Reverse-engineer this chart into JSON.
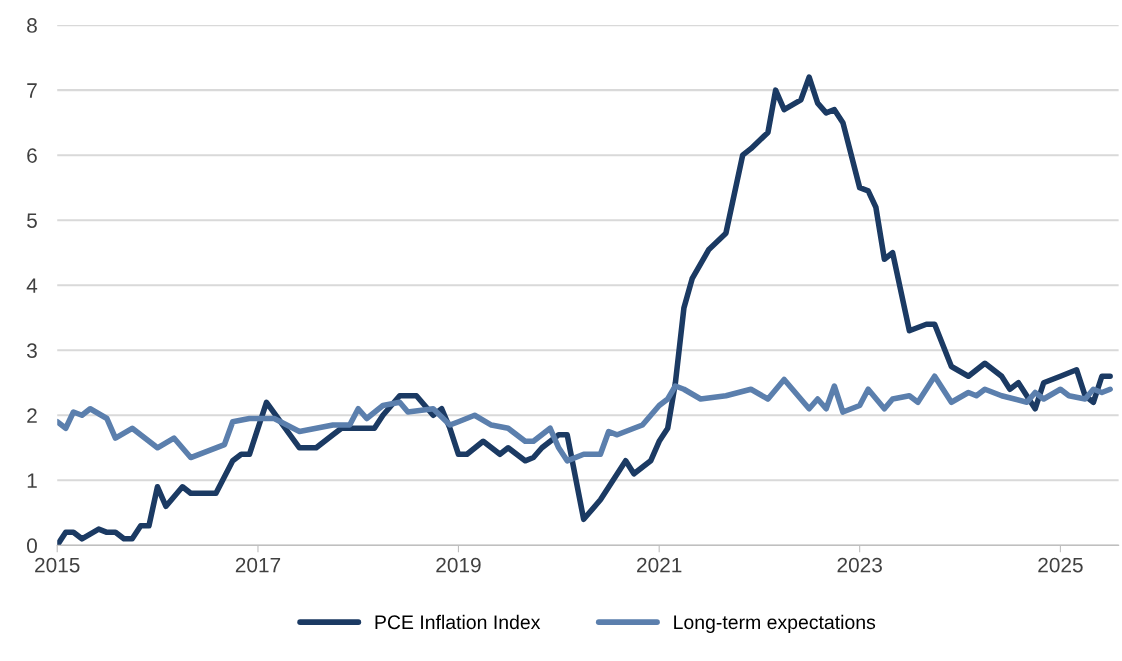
{
  "chart_data": {
    "type": "line",
    "xlim": [
      "2015-01",
      "2025-08"
    ],
    "xticks": [
      "2015",
      "2017",
      "2019",
      "2021",
      "2023",
      "2025"
    ],
    "ylim": [
      0,
      8
    ],
    "yticks": [
      0,
      1,
      2,
      3,
      4,
      5,
      6,
      7,
      8
    ],
    "grid": "y",
    "legend": "bottom",
    "marker": "none",
    "line_style": "solid",
    "series": [
      {
        "name": "PCE Inflation Index",
        "color": "#1b3a63",
        "x": [
          "2015-01",
          "2015-02",
          "2015-03",
          "2015-04",
          "2015-06",
          "2015-07",
          "2015-08",
          "2015-09",
          "2015-10",
          "2015-11",
          "2015-12",
          "2016-01",
          "2016-02",
          "2016-04",
          "2016-05",
          "2016-08",
          "2016-10",
          "2016-11",
          "2016-12",
          "2017-02",
          "2017-06",
          "2017-08",
          "2017-10",
          "2017-11",
          "2017-12",
          "2018-03",
          "2018-04",
          "2018-06",
          "2018-08",
          "2018-10",
          "2018-11",
          "2018-12",
          "2019-01",
          "2019-02",
          "2019-04",
          "2019-06",
          "2019-07",
          "2019-09",
          "2019-10",
          "2019-11",
          "2020-01",
          "2020-02",
          "2020-04",
          "2020-06",
          "2020-09",
          "2020-10",
          "2020-12",
          "2021-01",
          "2021-02",
          "2021-03",
          "2021-04",
          "2021-05",
          "2021-07",
          "2021-09",
          "2021-11",
          "2021-12",
          "2022-02",
          "2022-03",
          "2022-04",
          "2022-06",
          "2022-07",
          "2022-08",
          "2022-09",
          "2022-10",
          "2022-11",
          "2023-01",
          "2023-02",
          "2023-03",
          "2023-04",
          "2023-05",
          "2023-07",
          "2023-09",
          "2023-10",
          "2023-12",
          "2024-02",
          "2024-04",
          "2024-06",
          "2024-07",
          "2024-08",
          "2024-10",
          "2024-11",
          "2025-01",
          "2025-03",
          "2025-04",
          "2025-05",
          "2025-06",
          "2025-07"
        ],
        "values": [
          0.0,
          0.2,
          0.2,
          0.1,
          0.25,
          0.2,
          0.2,
          0.1,
          0.1,
          0.3,
          0.3,
          0.9,
          0.6,
          0.9,
          0.8,
          0.8,
          1.3,
          1.4,
          1.4,
          2.2,
          1.5,
          1.5,
          1.7,
          1.8,
          1.8,
          1.8,
          2.0,
          2.3,
          2.3,
          2.0,
          2.1,
          1.8,
          1.4,
          1.4,
          1.6,
          1.4,
          1.5,
          1.3,
          1.35,
          1.5,
          1.7,
          1.7,
          0.4,
          0.7,
          1.3,
          1.1,
          1.3,
          1.6,
          1.8,
          2.5,
          3.65,
          4.1,
          4.55,
          4.8,
          6.0,
          6.1,
          6.35,
          7.0,
          6.7,
          6.85,
          7.2,
          6.8,
          6.65,
          6.7,
          6.5,
          5.5,
          5.45,
          5.2,
          4.4,
          4.5,
          3.3,
          3.4,
          3.4,
          2.75,
          2.6,
          2.8,
          2.6,
          2.4,
          2.5,
          2.1,
          2.5,
          2.6,
          2.7,
          2.3,
          2.2,
          2.6,
          2.6
        ]
      },
      {
        "name": "Long-term expectations",
        "color": "#5b7fad",
        "x": [
          "2015-01",
          "2015-02",
          "2015-03",
          "2015-04",
          "2015-05",
          "2015-07",
          "2015-08",
          "2015-10",
          "2016-01",
          "2016-03",
          "2016-05",
          "2016-09",
          "2016-10",
          "2016-12",
          "2017-03",
          "2017-06",
          "2017-08",
          "2017-10",
          "2017-12",
          "2018-01",
          "2018-02",
          "2018-04",
          "2018-06",
          "2018-07",
          "2018-10",
          "2018-12",
          "2019-01",
          "2019-03",
          "2019-05",
          "2019-07",
          "2019-09",
          "2019-10",
          "2019-12",
          "2020-01",
          "2020-02",
          "2020-04",
          "2020-06",
          "2020-07",
          "2020-08",
          "2020-10",
          "2020-11",
          "2021-01",
          "2021-02",
          "2021-03",
          "2021-04",
          "2021-06",
          "2021-09",
          "2021-12",
          "2022-02",
          "2022-04",
          "2022-07",
          "2022-08",
          "2022-09",
          "2022-10",
          "2022-11",
          "2023-01",
          "2023-02",
          "2023-04",
          "2023-05",
          "2023-07",
          "2023-08",
          "2023-10",
          "2023-12",
          "2024-02",
          "2024-03",
          "2024-04",
          "2024-06",
          "2024-09",
          "2024-10",
          "2024-11",
          "2025-01",
          "2025-02",
          "2025-04",
          "2025-05",
          "2025-06",
          "2025-07"
        ],
        "values": [
          1.9,
          1.8,
          2.05,
          2.0,
          2.1,
          1.95,
          1.65,
          1.8,
          1.5,
          1.65,
          1.35,
          1.55,
          1.9,
          1.95,
          1.95,
          1.75,
          1.8,
          1.85,
          1.85,
          2.1,
          1.95,
          2.15,
          2.2,
          2.05,
          2.1,
          1.85,
          1.9,
          2.0,
          1.85,
          1.8,
          1.6,
          1.6,
          1.8,
          1.5,
          1.3,
          1.4,
          1.4,
          1.75,
          1.7,
          1.8,
          1.85,
          2.15,
          2.25,
          2.45,
          2.4,
          2.25,
          2.3,
          2.4,
          2.25,
          2.55,
          2.1,
          2.25,
          2.1,
          2.45,
          2.05,
          2.15,
          2.4,
          2.1,
          2.25,
          2.3,
          2.2,
          2.6,
          2.2,
          2.35,
          2.3,
          2.4,
          2.3,
          2.2,
          2.35,
          2.25,
          2.4,
          2.3,
          2.25,
          2.4,
          2.35,
          2.4
        ]
      }
    ]
  }
}
